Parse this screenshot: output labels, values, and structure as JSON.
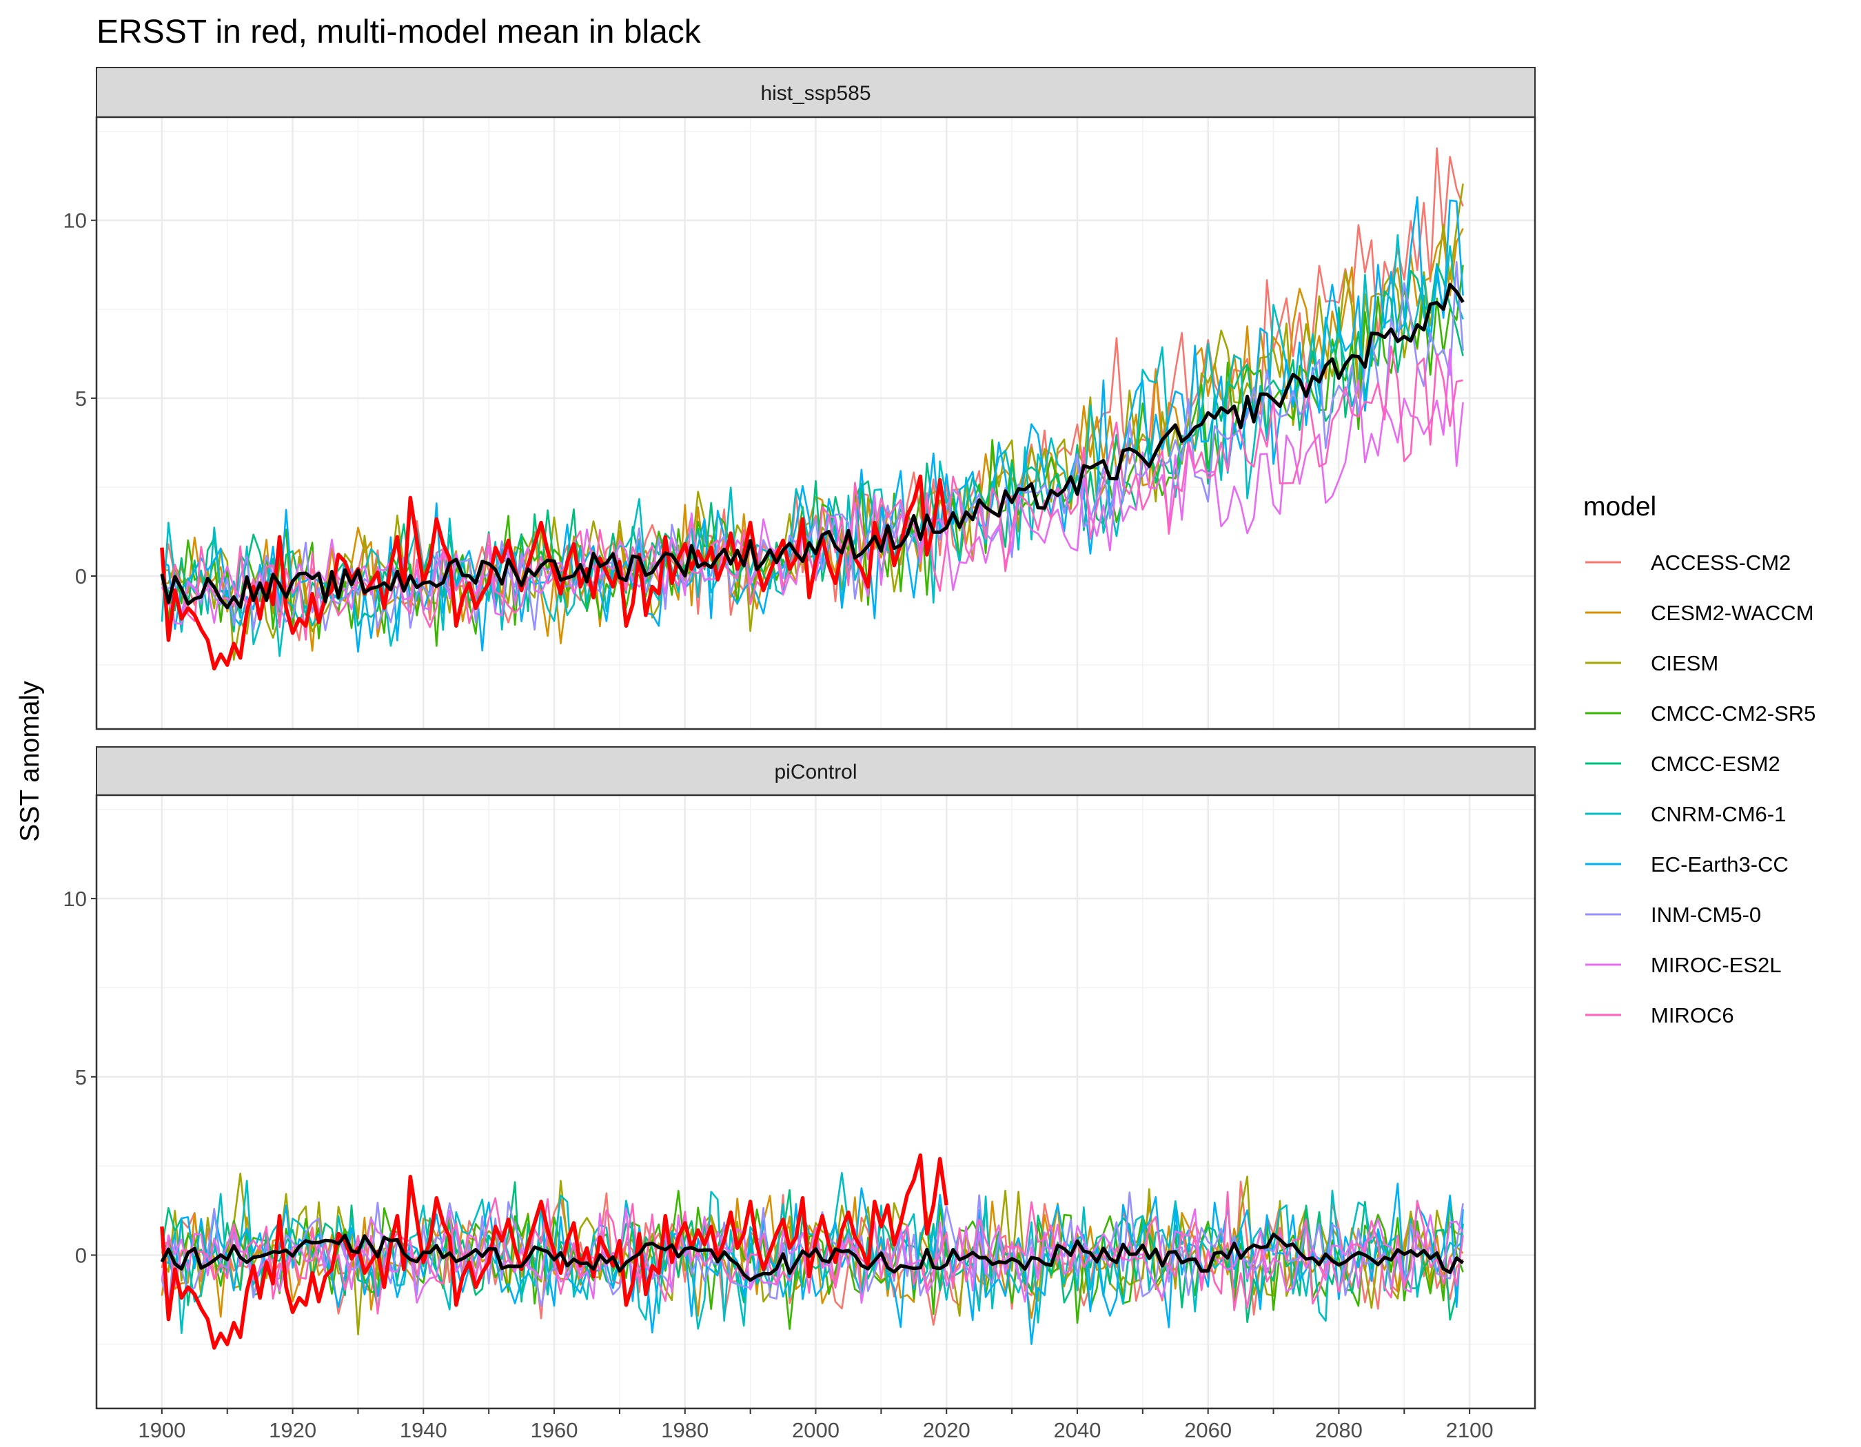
{
  "chart_data": {
    "type": "line",
    "title": "ERSST in red, multi-model mean in black",
    "ylabel": "SST anomaly",
    "xlabel": "",
    "xlim": [
      1890,
      2110
    ],
    "ylim": [
      -4.3,
      12.9
    ],
    "x_ticks": [
      1900,
      1920,
      1940,
      1960,
      1980,
      2000,
      2020,
      2040,
      2060,
      2080,
      2100
    ],
    "y_ticks": [
      0,
      5,
      10
    ],
    "facets": [
      "hist_ssp585",
      "piControl"
    ],
    "legend_title": "model",
    "legend_position": "right",
    "grid": true,
    "models": [
      {
        "name": "ACCESS-CM2",
        "color": "#F8766D"
      },
      {
        "name": "CESM2-WACCM",
        "color": "#D89000"
      },
      {
        "name": "CIESM",
        "color": "#A3A500"
      },
      {
        "name": "CMCC-CM2-SR5",
        "color": "#39B600"
      },
      {
        "name": "CMCC-ESM2",
        "color": "#00BF7D"
      },
      {
        "name": "CNRM-CM6-1",
        "color": "#00BFC4"
      },
      {
        "name": "EC-Earth3-CC",
        "color": "#00B0F6"
      },
      {
        "name": "INM-CM5-0",
        "color": "#9590FF"
      },
      {
        "name": "MIROC-ES2L",
        "color": "#E76BF3"
      },
      {
        "name": "MIROC6",
        "color": "#FF62BC"
      }
    ],
    "observations": {
      "name": "ERSST",
      "color": "#FF0000",
      "x": [
        1900,
        1901,
        1902,
        1903,
        1904,
        1905,
        1906,
        1907,
        1908,
        1909,
        1910,
        1911,
        1912,
        1913,
        1914,
        1915,
        1916,
        1917,
        1918,
        1919,
        1920,
        1921,
        1922,
        1923,
        1924,
        1925,
        1926,
        1927,
        1928,
        1929,
        1930,
        1931,
        1932,
        1933,
        1934,
        1935,
        1936,
        1937,
        1938,
        1939,
        1940,
        1941,
        1942,
        1943,
        1944,
        1945,
        1946,
        1947,
        1948,
        1949,
        1950,
        1951,
        1952,
        1953,
        1954,
        1955,
        1956,
        1957,
        1958,
        1959,
        1960,
        1961,
        1962,
        1963,
        1964,
        1965,
        1966,
        1967,
        1968,
        1969,
        1970,
        1971,
        1972,
        1973,
        1974,
        1975,
        1976,
        1977,
        1978,
        1979,
        1980,
        1981,
        1982,
        1983,
        1984,
        1985,
        1986,
        1987,
        1988,
        1989,
        1990,
        1991,
        1992,
        1993,
        1994,
        1995,
        1996,
        1997,
        1998,
        1999,
        2000,
        2001,
        2002,
        2003,
        2004,
        2005,
        2006,
        2007,
        2008,
        2009,
        2010,
        2011,
        2012,
        2013,
        2014,
        2015,
        2016,
        2017,
        2018,
        2019,
        2020
      ],
      "y": [
        0.8,
        -1.8,
        -0.4,
        -1.2,
        -0.9,
        -1.1,
        -1.5,
        -1.8,
        -2.6,
        -2.2,
        -2.5,
        -1.9,
        -2.3,
        -1.0,
        -0.3,
        -1.2,
        -0.2,
        -0.8,
        1.1,
        -0.9,
        -1.6,
        -1.2,
        -1.4,
        -0.5,
        -1.3,
        -0.6,
        -0.4,
        0.6,
        0.4,
        -0.1,
        0.2,
        -0.5,
        -0.2,
        0.1,
        -0.9,
        0.3,
        1.1,
        -0.4,
        2.2,
        1.0,
        -0.2,
        0.4,
        1.6,
        0.9,
        0.5,
        -1.4,
        -0.6,
        -0.2,
        -0.9,
        -0.5,
        -0.2,
        0.8,
        0.4,
        1.0,
        0.2,
        -0.4,
        0.3,
        0.9,
        1.5,
        0.7,
        0.1,
        -0.5,
        0.4,
        0.9,
        -0.3,
        0.2,
        -0.6,
        0.5,
        0.1,
        -0.3,
        0.4,
        -1.4,
        -0.8,
        0.6,
        -1.1,
        -0.3,
        -0.5,
        1.1,
        -0.2,
        0.5,
        0.9,
        0.2,
        0.7,
        0.3,
        0.8,
        -0.1,
        0.4,
        1.2,
        0.2,
        0.6,
        1.5,
        0.3,
        -0.4,
        0.1,
        0.6,
        1.0,
        0.2,
        0.5,
        1.6,
        -0.6,
        0.4,
        1.1,
        0.3,
        -0.2,
        0.7,
        1.2,
        0.5,
        0.2,
        -0.3,
        1.5,
        0.8,
        1.4,
        0.3,
        0.9,
        1.7,
        2.1,
        2.8,
        0.6,
        1.4,
        2.7,
        1.4
      ]
    },
    "multi_model_mean": {
      "name": "multi-model mean",
      "color": "#000000",
      "hist_ssp585": {
        "x": [
          1900,
          1910,
          1920,
          1930,
          1940,
          1950,
          1960,
          1970,
          1980,
          1990,
          2000,
          2010,
          2020,
          2030,
          2040,
          2050,
          2060,
          2070,
          2080,
          2090,
          2099
        ],
        "y": [
          -0.3,
          -0.45,
          -0.35,
          -0.25,
          -0.05,
          0.15,
          0.2,
          0.3,
          0.45,
          0.6,
          0.8,
          1.05,
          1.5,
          2.0,
          2.6,
          3.4,
          4.2,
          5.0,
          5.9,
          6.9,
          8.0
        ]
      },
      "piControl": {
        "x": [
          1900,
          1910,
          1920,
          1930,
          1940,
          1950,
          1960,
          1970,
          1980,
          1990,
          2000,
          2010,
          2020,
          2030,
          2040,
          2050,
          2060,
          2070,
          2080,
          2090,
          2099
        ],
        "y": [
          -0.1,
          -0.05,
          0.1,
          0.3,
          0.05,
          -0.1,
          0.0,
          -0.2,
          0.3,
          -0.4,
          -0.1,
          -0.2,
          -0.1,
          -0.3,
          0.1,
          0.0,
          -0.2,
          0.4,
          -0.3,
          0.2,
          -0.3
        ]
      }
    },
    "model_trend": {
      "x": [
        1900,
        1920,
        1940,
        1960,
        1980,
        2000,
        2020,
        2040,
        2060,
        2080,
        2099
      ],
      "y": [
        -0.4,
        -0.4,
        -0.15,
        0.15,
        0.35,
        0.75,
        1.5,
        2.5,
        4.0,
        5.6,
        7.5
      ]
    }
  }
}
